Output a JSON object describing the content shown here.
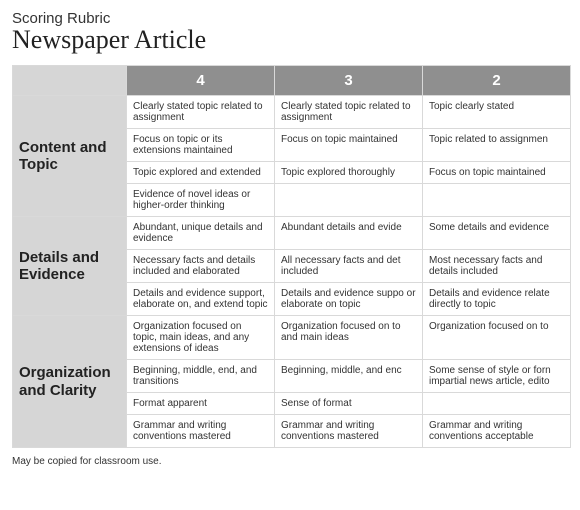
{
  "header": {
    "overline": "Scoring Rubric",
    "title": "Newspaper Article"
  },
  "colors": {
    "header_bg": "#8f8f8f",
    "header_fg": "#ffffff",
    "rowhead_bg": "#d6d6d6",
    "border": "#d9d9d9",
    "text": "#333333"
  },
  "typography": {
    "title_family": "Georgia, serif",
    "title_size_pt": 20,
    "overline_size_pt": 11,
    "cell_size_pt": 8,
    "rowhead_size_pt": 11,
    "score_header_size_pt": 11
  },
  "scores": [
    "4",
    "3",
    "2"
  ],
  "sections": [
    {
      "name": "Content and Topic",
      "rows": [
        {
          "4": "Clearly stated topic related to assignment",
          "3": "Clearly stated topic related to assignment",
          "2": "Topic clearly stated"
        },
        {
          "4": "Focus on topic or its extensions maintained",
          "3": "Focus on topic maintained",
          "2": "Topic related to assignmen"
        },
        {
          "4": "Topic explored and extended",
          "3": "Topic explored thoroughly",
          "2": "Focus on topic maintained"
        },
        {
          "4": "Evidence of novel ideas or higher-order thinking",
          "3": "",
          "2": ""
        }
      ]
    },
    {
      "name": "Details and Evidence",
      "rows": [
        {
          "4": "Abundant, unique details and evidence",
          "3": "Abundant details and evide",
          "2": "Some details and evidence"
        },
        {
          "4": "Necessary facts and details included and elaborated",
          "3": "All necessary facts and det included",
          "2": "Most necessary facts and details included"
        },
        {
          "4": "Details and evidence support, elaborate on, and extend topic",
          "3": "Details and evidence suppo or elaborate on topic",
          "2": "Details and evidence relate directly to topic"
        }
      ]
    },
    {
      "name": "Organization and Clarity",
      "rows": [
        {
          "4": "Organization focused on topic, main ideas, and any extensions of ideas",
          "3": "Organization focused on to and main ideas",
          "2": "Organization focused on to"
        },
        {
          "4": "Beginning, middle, end, and transitions",
          "3": "Beginning, middle, and enc",
          "2": "Some sense of style or forn impartial news article, edito"
        },
        {
          "4": "Format apparent",
          "3": "Sense of format",
          "2": ""
        },
        {
          "4": "Grammar and writing conventions mastered",
          "3": "Grammar and writing conventions mastered",
          "2": "Grammar and writing conventions acceptable"
        }
      ]
    }
  ],
  "footer": "May be copied for classroom use."
}
